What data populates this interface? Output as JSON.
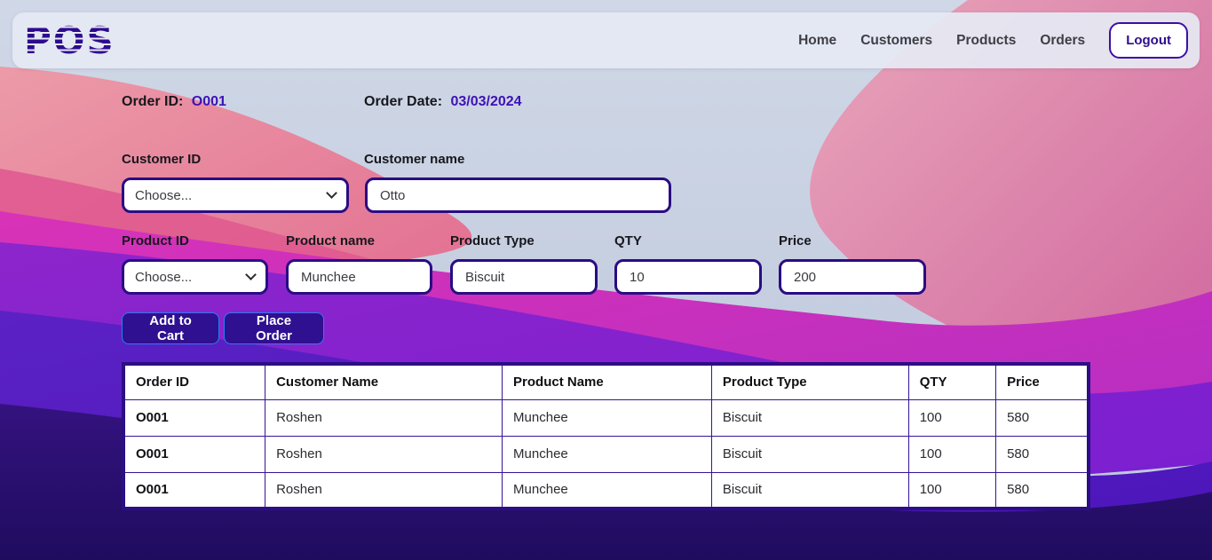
{
  "header": {
    "logo": "POS",
    "nav": [
      {
        "label": "Home"
      },
      {
        "label": "Customers"
      },
      {
        "label": "Products"
      },
      {
        "label": "Orders"
      }
    ],
    "logout_label": "Logout"
  },
  "order_info": {
    "order_id_label": "Order ID:",
    "order_id_value": "O001",
    "order_date_label": "Order Date:",
    "order_date_value": "03/03/2024"
  },
  "customer_form": {
    "customer_id_label": "Customer ID",
    "customer_id_value": "Choose...",
    "customer_name_label": "Customer name",
    "customer_name_value": "Otto"
  },
  "product_form": {
    "product_id_label": "Product ID",
    "product_id_value": "Choose...",
    "product_name_label": "Product name",
    "product_name_value": "Munchee",
    "product_type_label": "Product Type",
    "product_type_value": "Biscuit",
    "qty_label": "QTY",
    "qty_value": "10",
    "price_label": "Price",
    "price_value": "200"
  },
  "actions": {
    "add_to_cart_label": "Add to Cart",
    "place_order_label": "Place Order"
  },
  "orders_table": {
    "headers": [
      "Order ID",
      "Customer Name",
      "Product Name",
      "Product Type",
      "QTY",
      "Price"
    ],
    "rows": [
      [
        "O001",
        "Roshen",
        "Munchee",
        "Biscuit",
        "100",
        "580"
      ],
      [
        "O001",
        "Roshen",
        "Munchee",
        "Biscuit",
        "100",
        "580"
      ],
      [
        "O001",
        "Roshen",
        "Munchee",
        "Biscuit",
        "100",
        "580"
      ]
    ]
  },
  "colors": {
    "accent_purple": "#2e0b8e",
    "value_purple": "#3f11b5",
    "input_border": "#2a0c83",
    "button_bg": "#2e1090",
    "button_border": "#2d7bf2",
    "nav_text": "#3e3e45",
    "navbar_bg": "#e5e9f3"
  }
}
